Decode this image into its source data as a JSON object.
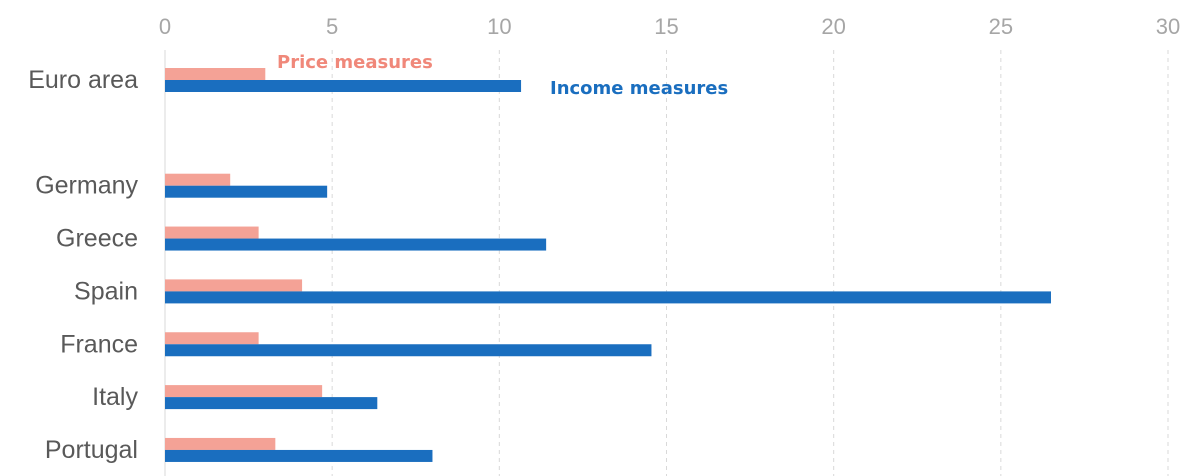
{
  "chart_data": {
    "type": "bar",
    "orientation": "horizontal",
    "title": "",
    "xlabel": "",
    "ylabel": "",
    "xlim": [
      0,
      30
    ],
    "xticks": [
      0,
      5,
      10,
      15,
      20,
      25,
      30
    ],
    "grid": "vertical dashed",
    "categories": [
      "Euro area",
      "",
      "Germany",
      "Greece",
      "Spain",
      "France",
      "Italy",
      "Portugal"
    ],
    "series": [
      {
        "name": "Price measures",
        "color": "#f4a296",
        "values": [
          3.0,
          null,
          1.95,
          2.8,
          4.1,
          2.8,
          4.7,
          3.3
        ]
      },
      {
        "name": "Income measures",
        "color": "#1a6ebf",
        "values": [
          10.65,
          null,
          4.85,
          11.4,
          26.5,
          14.55,
          6.35,
          8.0
        ]
      }
    ],
    "legend": "inline labels near Euro area bars"
  }
}
